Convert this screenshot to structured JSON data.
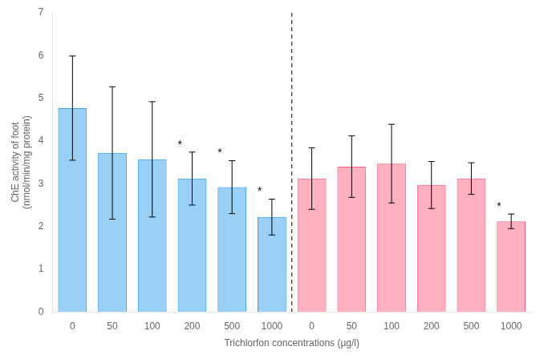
{
  "chart_data": {
    "type": "bar",
    "categories": [
      "0",
      "50",
      "100",
      "200",
      "500",
      "1000",
      "0",
      "50",
      "100",
      "200",
      "500",
      "1000"
    ],
    "series": [
      {
        "values": [
          4.77,
          3.72,
          3.57,
          3.12,
          2.92,
          2.22,
          null,
          null,
          null,
          null,
          null,
          null
        ],
        "errors": [
          1.22,
          1.55,
          1.35,
          0.62,
          0.62,
          0.42,
          null,
          null,
          null,
          null,
          null,
          null
        ],
        "significant": [
          false,
          false,
          false,
          true,
          true,
          true,
          false,
          false,
          false,
          false,
          false,
          false
        ]
      },
      {
        "values": [
          null,
          null,
          null,
          null,
          null,
          null,
          3.12,
          3.4,
          3.47,
          2.97,
          3.12,
          2.12
        ],
        "errors": [
          null,
          null,
          null,
          null,
          null,
          null,
          0.72,
          0.72,
          0.92,
          0.55,
          0.37,
          0.17
        ],
        "significant": [
          false,
          false,
          false,
          false,
          false,
          false,
          false,
          false,
          false,
          false,
          false,
          true
        ]
      }
    ],
    "significance_label": "*",
    "xlabel": "Trichlorfon concentrations (µg/l)",
    "ylabel": "ChE activity of foot\n(nmol/min/mg protein)",
    "ylim": [
      0,
      7
    ],
    "yticks": [
      0,
      1,
      2,
      3,
      4,
      5,
      6,
      7
    ],
    "grid": false
  }
}
